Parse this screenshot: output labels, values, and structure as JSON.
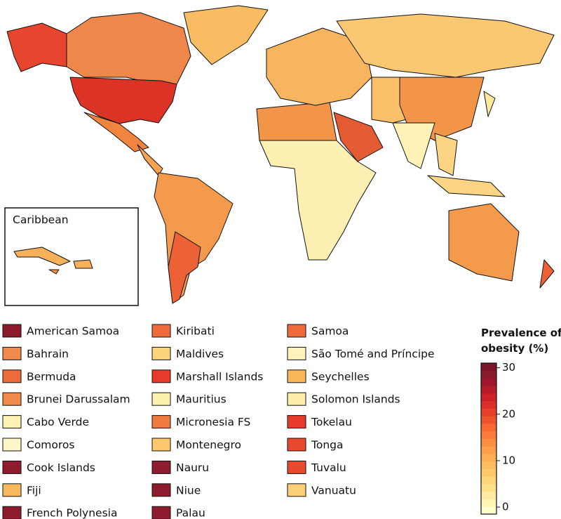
{
  "inset": {
    "label": "Caribbean"
  },
  "legend": [
    {
      "name": "American Samoa",
      "color": "#8b1a2b"
    },
    {
      "name": "Bahrain",
      "color": "#f08a4b"
    },
    {
      "name": "Bermuda",
      "color": "#ee6a3a"
    },
    {
      "name": "Brunei Darussalam",
      "color": "#f08a4b"
    },
    {
      "name": "Cabo Verde",
      "color": "#fdf3b4"
    },
    {
      "name": "Comoros",
      "color": "#fef6c6"
    },
    {
      "name": "Cook Islands",
      "color": "#8e1c2e"
    },
    {
      "name": "Fiji",
      "color": "#f8b85e"
    },
    {
      "name": "French Polynesia",
      "color": "#8e1c2e"
    },
    {
      "name": "Kiribati",
      "color": "#ee6a3a"
    },
    {
      "name": "Maldives",
      "color": "#fcd27a"
    },
    {
      "name": "Marshall Islands",
      "color": "#e83a2a"
    },
    {
      "name": "Mauritius",
      "color": "#fdf1b0"
    },
    {
      "name": "Micronesia FS",
      "color": "#f07a40"
    },
    {
      "name": "Montenegro",
      "color": "#fbc86c"
    },
    {
      "name": "Nauru",
      "color": "#8e1c2e"
    },
    {
      "name": "Niue",
      "color": "#8e1c2e"
    },
    {
      "name": "Palau",
      "color": "#8e1c2e"
    },
    {
      "name": "Samoa",
      "color": "#ee6a3a"
    },
    {
      "name": "São Tomé and Príncipe",
      "color": "#fef4bb"
    },
    {
      "name": "Seychelles",
      "color": "#f9b659"
    },
    {
      "name": "Solomon Islands",
      "color": "#fdeeaa"
    },
    {
      "name": "Tokelau",
      "color": "#e83a2a"
    },
    {
      "name": "Tonga",
      "color": "#e84a30"
    },
    {
      "name": "Tuvalu",
      "color": "#e84a30"
    },
    {
      "name": "Vanuatu",
      "color": "#fbd077"
    }
  ],
  "colorbar": {
    "title": "Prevalence of obesity (%)",
    "clim": [
      -1.5,
      31
    ],
    "ticks": [
      0,
      10,
      20,
      30
    ],
    "colors": [
      "#ffffcc",
      "#fff4b3",
      "#feeaa0",
      "#fee08b",
      "#fed57a",
      "#fdc96b",
      "#fdbd5e",
      "#fdae53",
      "#fd9f4a",
      "#fc8e42",
      "#fa7b3b",
      "#f66834",
      "#f0542e",
      "#e8402a",
      "#dc2f28",
      "#cc2228",
      "#b71a2a",
      "#9f152b",
      "#8b1a2b",
      "#7a1428"
    ]
  }
}
